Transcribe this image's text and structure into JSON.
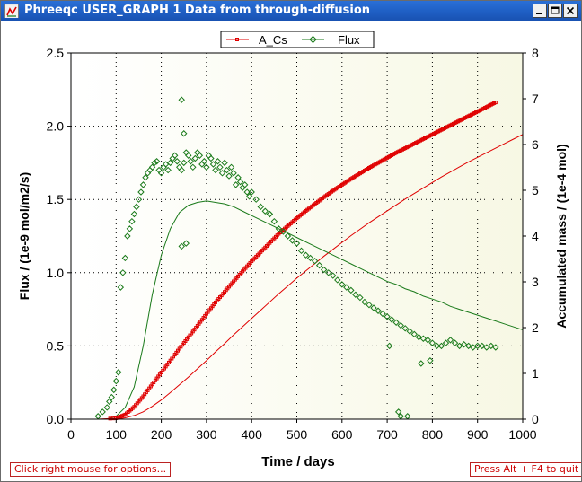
{
  "window": {
    "title": "Phreeqc USER_GRAPH 1 Data from through-diffusion",
    "icon": "phreeqc-app-icon",
    "controls": {
      "minimize": "minimize-icon",
      "maximize": "maximize-icon",
      "close": "close-icon"
    }
  },
  "buttons": {
    "options": "Click right mouse for options...",
    "quit": "Press Alt + F4 to quit"
  },
  "colors": {
    "acs": "#e00000",
    "flux": "#1a7a1a",
    "model": "#1a7a1a",
    "plot_bg_left": "#ffffff",
    "plot_bg_right": "#f7f8e4"
  },
  "chart_data": {
    "type": "scatter",
    "xlabel": "Time / days",
    "ylabel": "Flux / (1e-9 mol/m2/s)",
    "y2label": "Accumulated mass / (1e-4 mol)",
    "xlim": [
      0,
      1000
    ],
    "ylim": [
      0,
      2.5
    ],
    "y2lim": [
      0,
      8
    ],
    "xticks": [
      "0",
      "100",
      "200",
      "300",
      "400",
      "500",
      "600",
      "700",
      "800",
      "900",
      "1000"
    ],
    "yticks": [
      "0.0",
      "0.5",
      "1.0",
      "1.5",
      "2.0",
      "2.5"
    ],
    "y2ticks": [
      "0",
      "1",
      "2",
      "3",
      "4",
      "5",
      "6",
      "7",
      "8"
    ],
    "grid": true,
    "legend": {
      "placement": "top-center",
      "entries": [
        "A_Cs",
        "Flux"
      ]
    },
    "series": [
      {
        "name": "A_Cs",
        "axis": "right",
        "marker": "square",
        "x": [
          0,
          60,
          100,
          120,
          140,
          160,
          180,
          200,
          220,
          240,
          260,
          280,
          300,
          320,
          340,
          360,
          380,
          400,
          420,
          440,
          460,
          480,
          500,
          520,
          540,
          560,
          580,
          600,
          620,
          640,
          660,
          680,
          700,
          720,
          740,
          760,
          780,
          800,
          820,
          840,
          860,
          880,
          900,
          920,
          940
        ],
        "y": [
          0,
          0,
          0.02,
          0.1,
          0.27,
          0.5,
          0.76,
          1.02,
          1.28,
          1.54,
          1.79,
          2.04,
          2.3,
          2.55,
          2.78,
          3.01,
          3.23,
          3.45,
          3.65,
          3.85,
          4.05,
          4.22,
          4.39,
          4.55,
          4.7,
          4.85,
          4.99,
          5.12,
          5.25,
          5.37,
          5.49,
          5.6,
          5.71,
          5.82,
          5.92,
          6.02,
          6.12,
          6.22,
          6.32,
          6.42,
          6.52,
          6.62,
          6.72,
          6.82,
          6.92
        ]
      },
      {
        "name": "Flux",
        "axis": "left",
        "marker": "diamond",
        "x": [
          60,
          70,
          80,
          85,
          90,
          95,
          100,
          105,
          110,
          115,
          120,
          125,
          130,
          135,
          140,
          145,
          150,
          155,
          160,
          165,
          170,
          175,
          180,
          185,
          190,
          195,
          200,
          205,
          210,
          215,
          220,
          225,
          230,
          235,
          240,
          245,
          250,
          255,
          260,
          265,
          270,
          275,
          280,
          285,
          290,
          295,
          300,
          305,
          310,
          315,
          320,
          325,
          330,
          335,
          340,
          345,
          350,
          355,
          360,
          365,
          370,
          375,
          380,
          385,
          390,
          395,
          400,
          410,
          420,
          430,
          440,
          450,
          460,
          470,
          480,
          490,
          500,
          510,
          520,
          530,
          540,
          550,
          560,
          570,
          580,
          590,
          600,
          610,
          620,
          630,
          640,
          650,
          660,
          670,
          680,
          690,
          700,
          710,
          720,
          730,
          740,
          750,
          760,
          770,
          780,
          790,
          800,
          810,
          820,
          830,
          840,
          850,
          860,
          870,
          880,
          890,
          900,
          910,
          920,
          930,
          940,
          245,
          250,
          255,
          245,
          440,
          705,
          725,
          730,
          745,
          775,
          795
        ],
        "y": [
          0.02,
          0.05,
          0.08,
          0.12,
          0.15,
          0.2,
          0.26,
          0.32,
          0.9,
          1.0,
          1.1,
          1.25,
          1.3,
          1.35,
          1.4,
          1.45,
          1.5,
          1.55,
          1.6,
          1.65,
          1.68,
          1.7,
          1.72,
          1.75,
          1.76,
          1.7,
          1.68,
          1.72,
          1.74,
          1.7,
          1.75,
          1.78,
          1.8,
          1.76,
          1.72,
          1.7,
          1.75,
          1.82,
          1.8,
          1.76,
          1.72,
          1.78,
          1.82,
          1.8,
          1.74,
          1.76,
          1.72,
          1.8,
          1.78,
          1.74,
          1.7,
          1.76,
          1.72,
          1.68,
          1.75,
          1.7,
          1.66,
          1.72,
          1.68,
          1.6,
          1.65,
          1.62,
          1.58,
          1.6,
          1.55,
          1.52,
          1.55,
          1.5,
          1.45,
          1.42,
          1.4,
          1.35,
          1.3,
          1.28,
          1.25,
          1.22,
          1.2,
          1.15,
          1.12,
          1.1,
          1.08,
          1.05,
          1.02,
          1.0,
          0.98,
          0.95,
          0.92,
          0.9,
          0.88,
          0.85,
          0.83,
          0.8,
          0.78,
          0.76,
          0.74,
          0.72,
          0.7,
          0.68,
          0.66,
          0.64,
          0.62,
          0.6,
          0.58,
          0.56,
          0.55,
          0.54,
          0.52,
          0.5,
          0.5,
          0.52,
          0.54,
          0.52,
          0.5,
          0.51,
          0.5,
          0.49,
          0.5,
          0.5,
          0.49,
          0.5,
          0.49,
          2.18,
          1.95,
          1.2,
          1.18,
          1.4,
          0.5,
          0.05,
          0.02,
          0.02,
          0.38,
          0.4
        ],
        "model_curve": {
          "x": [
            0,
            80,
            100,
            120,
            140,
            160,
            180,
            200,
            220,
            240,
            260,
            280,
            300,
            320,
            340,
            360,
            380,
            400,
            420,
            440,
            460,
            480,
            500,
            520,
            540,
            560,
            580,
            600,
            620,
            640,
            660,
            680,
            700,
            720,
            740,
            760,
            780,
            800,
            820,
            840,
            860,
            880,
            900,
            920,
            940,
            960,
            980,
            1000
          ],
          "y": [
            0,
            0,
            0.02,
            0.08,
            0.22,
            0.5,
            0.85,
            1.12,
            1.3,
            1.41,
            1.46,
            1.48,
            1.49,
            1.48,
            1.47,
            1.45,
            1.42,
            1.39,
            1.36,
            1.33,
            1.3,
            1.27,
            1.24,
            1.21,
            1.18,
            1.15,
            1.12,
            1.09,
            1.06,
            1.03,
            1.0,
            0.97,
            0.94,
            0.92,
            0.89,
            0.87,
            0.84,
            0.82,
            0.8,
            0.77,
            0.75,
            0.73,
            0.71,
            0.69,
            0.67,
            0.65,
            0.63,
            0.61
          ]
        }
      },
      {
        "axis": "right",
        "marker": "line",
        "x": [
          0,
          100,
          120,
          140,
          160,
          180,
          200,
          220,
          240,
          260,
          280,
          300,
          320,
          340,
          360,
          380,
          400,
          420,
          440,
          460,
          480,
          500,
          520,
          540,
          560,
          580,
          600,
          620,
          640,
          660,
          680,
          700,
          720,
          740,
          760,
          780,
          800,
          820,
          840,
          860,
          880,
          900,
          920,
          940,
          960,
          980,
          1000
        ],
        "y": [
          0,
          0,
          0.03,
          0.08,
          0.16,
          0.28,
          0.42,
          0.58,
          0.75,
          0.92,
          1.1,
          1.28,
          1.47,
          1.65,
          1.84,
          2.02,
          2.2,
          2.38,
          2.56,
          2.74,
          2.91,
          3.08,
          3.24,
          3.4,
          3.56,
          3.71,
          3.86,
          4.01,
          4.15,
          4.29,
          4.42,
          4.55,
          4.68,
          4.81,
          4.93,
          5.05,
          5.17,
          5.29,
          5.4,
          5.51,
          5.62,
          5.72,
          5.82,
          5.92,
          6.02,
          6.12,
          6.22
        ]
      }
    ]
  }
}
